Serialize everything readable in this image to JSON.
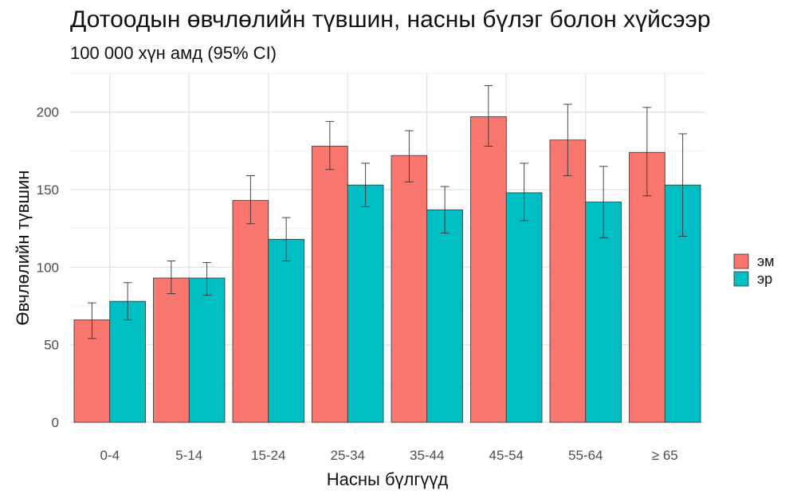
{
  "chart_data": {
    "type": "bar",
    "title": "Дотоодын өвчлөлийн түвшин, насны бүлэг болон хүйсээр",
    "subtitle": "100 000 хүн амд (95% CI)",
    "xlabel": "Насны бүлгүүд",
    "ylabel": "Өвчлөлийн түвшин",
    "categories": [
      "0-4",
      "5-14",
      "15-24",
      "25-34",
      "35-44",
      "45-54",
      "55-64",
      "≥ 65"
    ],
    "ylim": [
      0,
      225
    ],
    "yticks": [
      0,
      50,
      100,
      150,
      200
    ],
    "grid": true,
    "legend_position": "right",
    "series": [
      {
        "name": "эм",
        "color": "#F8766D",
        "values": [
          66,
          93,
          143,
          178,
          172,
          197,
          182,
          174
        ],
        "ci_low": [
          54,
          83,
          128,
          163,
          155,
          178,
          159,
          146
        ],
        "ci_high": [
          77,
          104,
          159,
          194,
          188,
          217,
          205,
          203
        ]
      },
      {
        "name": "эр",
        "color": "#00BFC4",
        "values": [
          78,
          93,
          118,
          153,
          137,
          148,
          142,
          153
        ],
        "ci_low": [
          66,
          82,
          104,
          139,
          122,
          130,
          119,
          120
        ],
        "ci_high": [
          90,
          103,
          132,
          167,
          152,
          167,
          165,
          186
        ]
      }
    ]
  }
}
